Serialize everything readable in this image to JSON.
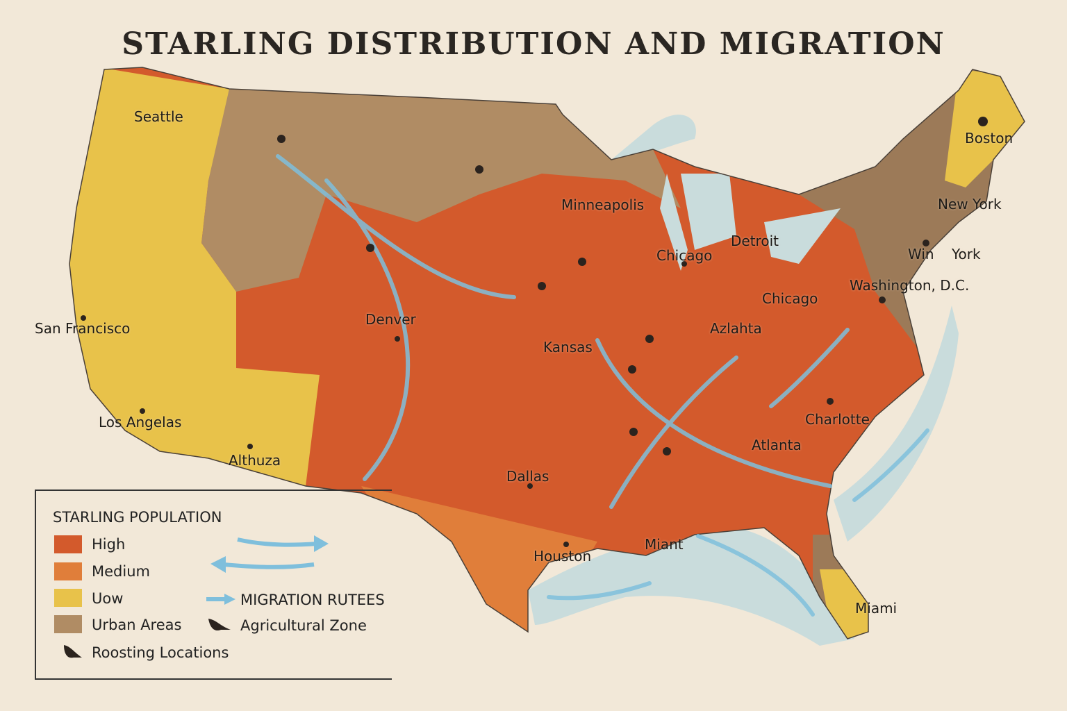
{
  "title": "STARLING DISTRIBUTION AND MIGRATION",
  "cities": [
    "Seattle",
    "Boston",
    "Minneapolis",
    "Chicago",
    "Detroit",
    "New York",
    "Win",
    "York",
    "Washington, D.C.",
    "Chicago",
    "San Francisco",
    "Denver",
    "Kansas",
    "Azlahta",
    "Charlotte",
    "Atlanta",
    "Los Angelas",
    "Althuza",
    "Dallas",
    "Houston",
    "Miant",
    "Miami"
  ],
  "legend": {
    "title": "STARLING POPULATION",
    "items": [
      {
        "label": "High",
        "color": "#d35a2c"
      },
      {
        "label": "Medium",
        "color": "#e07e3a"
      },
      {
        "label": "Uow",
        "color": "#e8c24a"
      },
      {
        "label": "Urban Areas",
        "color": "#b08c64"
      }
    ],
    "roosting": "Roosting Locations",
    "migration": "MIGRATION RUTEES",
    "agricultural": "Agricultural Zone",
    "migration_color": "#7fbfdc"
  },
  "colors": {
    "water": "#c9dcdc",
    "background": "#f2e8d8"
  }
}
